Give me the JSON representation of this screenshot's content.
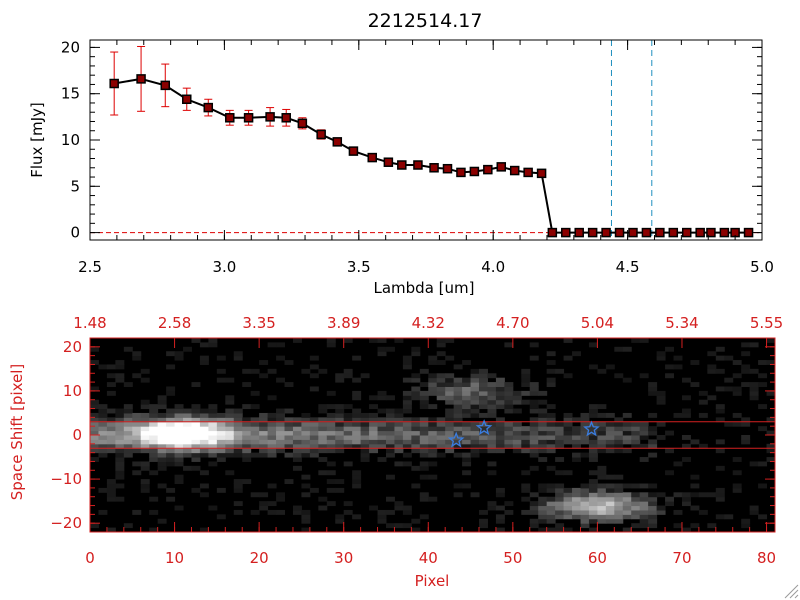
{
  "chart_data": [
    {
      "type": "scatter",
      "title": "2212514.17",
      "xlabel": "Lambda [um]",
      "ylabel": "Flux [mJy]",
      "xlim": [
        2.5,
        5.0
      ],
      "ylim": [
        -0.8,
        20.8
      ],
      "xticks": [
        2.5,
        3.0,
        3.5,
        4.0,
        4.5,
        5.0
      ],
      "xtick_labels": [
        "2.5",
        "3.0",
        "3.5",
        "4.0",
        "4.5",
        "5.0"
      ],
      "yticks": [
        0,
        5,
        10,
        15,
        20
      ],
      "ytick_labels": [
        "0",
        "5",
        "10",
        "15",
        "20"
      ],
      "series": [
        {
          "name": "flux",
          "color": "#000000",
          "marker_color": "#8b0000",
          "error_color": "#dd0000",
          "x": [
            2.59,
            2.69,
            2.78,
            2.86,
            2.94,
            3.02,
            3.09,
            3.17,
            3.23,
            3.29,
            3.36,
            3.42,
            3.48,
            3.55,
            3.61,
            3.66,
            3.72,
            3.78,
            3.83,
            3.88,
            3.93,
            3.98,
            4.03,
            4.08,
            4.13,
            4.18,
            4.22,
            4.27,
            4.32,
            4.37,
            4.42,
            4.47,
            4.52,
            4.57,
            4.62,
            4.67,
            4.72,
            4.77,
            4.81,
            4.86,
            4.9,
            4.95
          ],
          "y": [
            16.1,
            16.6,
            15.9,
            14.4,
            13.5,
            12.4,
            12.4,
            12.5,
            12.4,
            11.8,
            10.6,
            9.8,
            8.8,
            8.1,
            7.6,
            7.3,
            7.3,
            7.0,
            6.9,
            6.5,
            6.6,
            6.8,
            7.1,
            6.7,
            6.5,
            6.4,
            0.0,
            0.0,
            0.0,
            0.0,
            0.0,
            0.0,
            0.0,
            0.0,
            0.0,
            0.0,
            0.0,
            0.0,
            0.0,
            0.0,
            0.0,
            0.0
          ],
          "yerr": [
            3.4,
            3.5,
            2.3,
            1.2,
            0.9,
            0.8,
            0.8,
            1.0,
            0.9,
            0.6,
            0.5,
            0.4,
            0.3,
            0.2,
            0.2,
            0.2,
            0.2,
            0.2,
            0.2,
            0.2,
            0.2,
            0.2,
            0.2,
            0.2,
            0.2,
            0.2,
            0,
            0,
            0,
            0,
            0,
            0,
            0,
            0,
            0,
            0,
            0,
            0,
            0,
            0,
            0,
            0
          ]
        }
      ],
      "vlines": [
        4.44,
        4.59
      ],
      "vline_color": "#1f8fbf",
      "hline": 0,
      "hline_color": "#dd0000"
    },
    {
      "type": "heatmap",
      "xlabel": "Pixel",
      "ylabel": "Space Shift [pixel]",
      "xlim": [
        0,
        81
      ],
      "ylim": [
        -22,
        22
      ],
      "xticks": [
        0,
        10,
        20,
        30,
        40,
        50,
        60,
        70,
        80
      ],
      "xtick_labels": [
        "0",
        "10",
        "20",
        "30",
        "40",
        "50",
        "60",
        "70",
        "80"
      ],
      "yticks": [
        -20,
        -10,
        0,
        10,
        20
      ],
      "ytick_labels": [
        "−20",
        "−10",
        "0",
        "10",
        "20"
      ],
      "top_axis_positions": [
        0,
        10,
        20,
        30,
        40,
        50,
        60,
        70,
        80
      ],
      "top_axis_labels": [
        "1.48",
        "2.58",
        "3.35",
        "3.89",
        "4.32",
        "4.70",
        "5.04",
        "5.34",
        "5.55"
      ],
      "extraction_lines": [
        3,
        -3
      ],
      "axis_color": "#d42020",
      "markers": [
        {
          "type": "star",
          "x": 43.3,
          "y": -1.2,
          "color": "#3a7de0"
        },
        {
          "type": "star",
          "x": 46.6,
          "y": 1.6,
          "color": "#3a7de0"
        },
        {
          "type": "star",
          "x": 59.3,
          "y": 1.3,
          "color": "#3a7de0"
        }
      ],
      "sources": [
        {
          "x": 11,
          "y": 0.5,
          "peak": 1.0
        },
        {
          "x": 60,
          "y": -16,
          "peak": 0.78
        },
        {
          "x": 45,
          "y": 10,
          "peak": 0.4
        }
      ]
    }
  ]
}
